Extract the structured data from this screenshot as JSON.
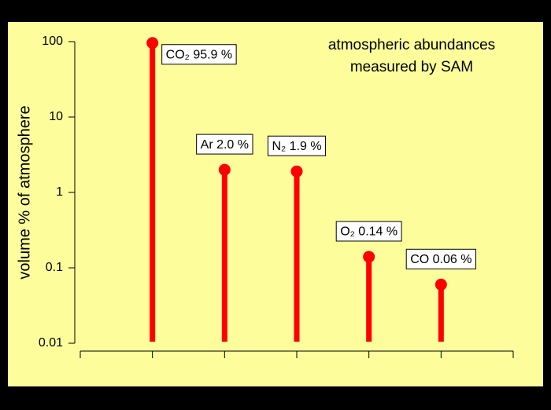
{
  "chart_data": {
    "type": "lollipop",
    "annotation": [
      "atmospheric abundances",
      "measured by SAM"
    ],
    "y_label": "volume % of atmosphere",
    "categories": [
      null,
      null,
      null,
      null,
      null
    ],
    "values": [
      95.9,
      2.0,
      1.9,
      0.14,
      0.06
    ],
    "value_labels": [
      "CO₂ 95.9 %",
      "Ar 2.0 %",
      "N₂ 1.9 %",
      "O₂ 0.14 %",
      "CO 0.06 %"
    ],
    "color": "#ff0000",
    "ylim": [
      0.01,
      100
    ],
    "yticks": [
      100,
      10,
      1,
      0.1,
      0.01
    ],
    "log_y": true
  }
}
